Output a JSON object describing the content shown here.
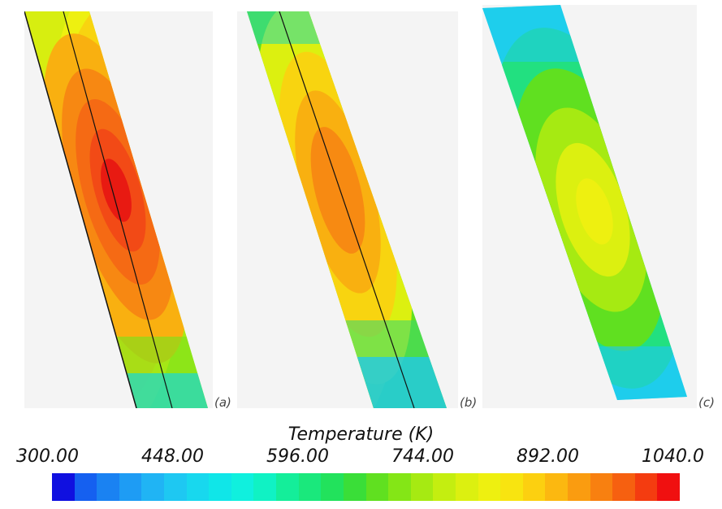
{
  "panels": [
    {
      "id": "a",
      "label": "(a)"
    },
    {
      "id": "b",
      "label": "(b)"
    },
    {
      "id": "c",
      "label": "(c)"
    }
  ],
  "legend": {
    "title": "Temperature (K)",
    "ticks": [
      "300.00",
      "448.00",
      "596.00",
      "744.00",
      "892.00",
      "1040.0"
    ],
    "min": 300,
    "max": 1040,
    "colors": [
      "#1010e0",
      "#1560f0",
      "#1a82f2",
      "#1e9cf4",
      "#20b4f4",
      "#1ec8f2",
      "#18d8ee",
      "#10e6e8",
      "#10f0de",
      "#10f2c4",
      "#14ee9a",
      "#1ae87c",
      "#22e25c",
      "#3ade38",
      "#60e020",
      "#84e616",
      "#a6ea12",
      "#c4ee10",
      "#dcf010",
      "#eef010",
      "#f8e410",
      "#fcd010",
      "#fcb810",
      "#fa9c10",
      "#f88010",
      "#f66010",
      "#f43c10",
      "#f01010"
    ]
  }
}
